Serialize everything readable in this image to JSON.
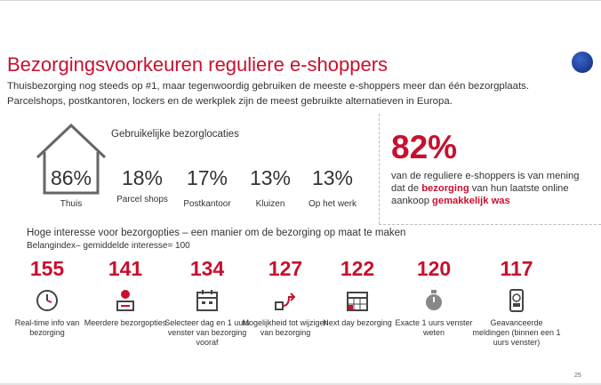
{
  "title": "Bezorgingsvoorkeuren reguliere e-shoppers",
  "subtitle": "Thuisbezorging nog steeds op #1, maar tegenwoordig gebruiken de meeste e-shoppers meer dan één bezorgplaats. Parcelshops, postkantoren, lockers en de werkplek zijn de meest gebruikte alternatieven in Europa.",
  "locations": {
    "title": "Gebruikelijke bezorglocaties",
    "items": [
      {
        "value": "86%",
        "label": "Thuis"
      },
      {
        "value": "18%",
        "label": "Parcel shops"
      },
      {
        "value": "17%",
        "label": "Postkantoor"
      },
      {
        "value": "13%",
        "label": "Kluizen"
      },
      {
        "value": "13%",
        "label": "Op het werk"
      }
    ]
  },
  "stat": {
    "value": "82%",
    "text_before": "van de reguliere e-shoppers is van mening dat de ",
    "highlight1": "bezorging",
    "text_middle": " van hun laatste online aankoop ",
    "highlight2": "gemakkelijk was"
  },
  "interest": {
    "title": "Hoge interesse voor bezorgopties – een manier om de bezorging op maat te maken",
    "subtitle": "Belangindex– gemiddelde interesse= 100",
    "items": [
      {
        "value": "155",
        "icon": "clock-icon",
        "label": "Real-time info van bezorging"
      },
      {
        "value": "141",
        "icon": "user-pin-icon",
        "label": "Meerdere bezorgopties"
      },
      {
        "value": "134",
        "icon": "calendar-icon",
        "label": "Selecteer dag en 1 uurs venster van bezorging vooraf"
      },
      {
        "value": "127",
        "icon": "reroute-icon",
        "label": "Mogelijkheid tot wijzigen van bezorging"
      },
      {
        "value": "122",
        "icon": "calendar-grid-icon",
        "label": "Next day bezorging"
      },
      {
        "value": "120",
        "icon": "stopwatch-icon",
        "label": "Exacte 1 uurs venster weten"
      },
      {
        "value": "117",
        "icon": "phone-alert-icon",
        "label": "Geavanceerde meldingen (binnen een 1 uurs venster)"
      }
    ]
  },
  "page_number": "25",
  "colors": {
    "accent": "#c8102e",
    "text": "#333333"
  }
}
